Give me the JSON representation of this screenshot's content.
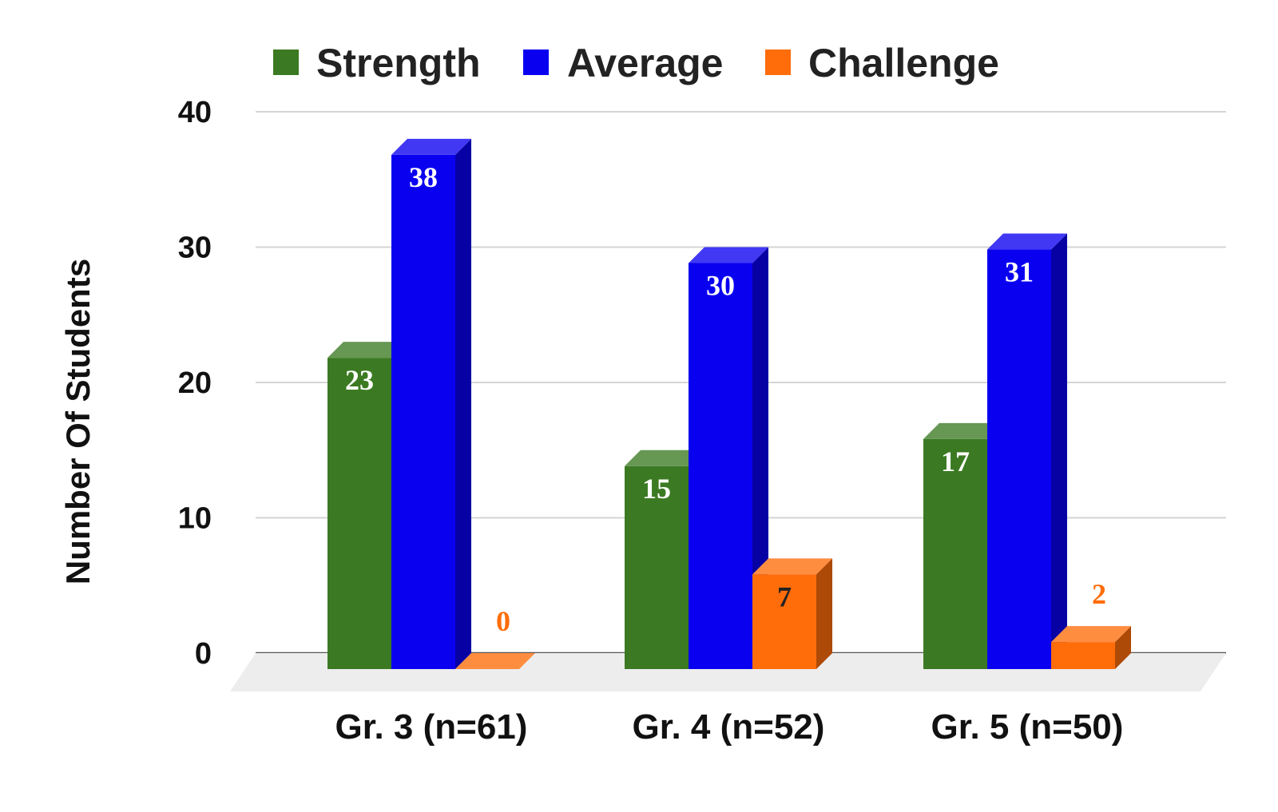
{
  "chart_data": {
    "type": "bar",
    "categories": [
      "Gr. 3 (n=61)",
      "Gr. 4 (n=52)",
      "Gr. 5 (n=50)"
    ],
    "series": [
      {
        "name": "Strength",
        "values": [
          23,
          15,
          17
        ],
        "color": "#3b7a22",
        "label_color": "#ffffff"
      },
      {
        "name": "Average",
        "values": [
          38,
          30,
          31
        ],
        "color": "#0a00f0",
        "label_color": "#ffffff"
      },
      {
        "name": "Challenge",
        "values": [
          0,
          7,
          2
        ],
        "color": "#ff6d0a",
        "label_color": "#ff6d0a"
      }
    ],
    "title": "",
    "xlabel": "",
    "ylabel": "Number Of Students",
    "ylim": [
      0,
      40
    ],
    "yticks": [
      0,
      10,
      20,
      30,
      40
    ],
    "grid": true,
    "legend": "top",
    "style": "3d"
  }
}
